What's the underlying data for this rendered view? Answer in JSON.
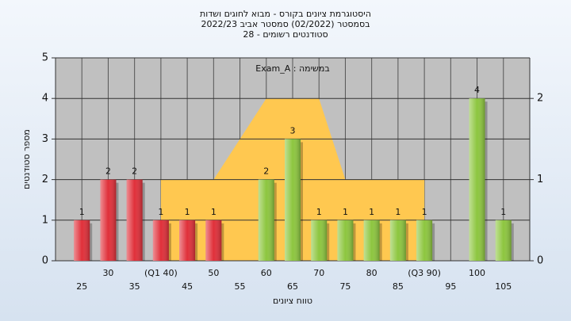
{
  "chart_data": {
    "type": "bar",
    "title": "היסטוגרמת ציונים בקורס - מבוא לחוגים ושדות",
    "subtitle": "בסמסטר  (02/2022)  סמסטר אביב 2022/23",
    "subtitle2": "סטודנטים רשומים - 28",
    "legend_text": "Exam_A : במשימה",
    "xlabel": "טווח ציונים",
    "ylabel": "מספר סטודנטים",
    "categories": [
      "25",
      "30",
      "35",
      "(Q1 40)",
      "45",
      "50",
      "55",
      "60",
      "65",
      "70",
      "75",
      "80",
      "85",
      "(Q3 90)",
      "95",
      "100",
      "105"
    ],
    "x": [
      25,
      30,
      35,
      40,
      45,
      50,
      55,
      60,
      65,
      70,
      75,
      80,
      85,
      90,
      95,
      100,
      105
    ],
    "values": [
      1,
      2,
      2,
      1,
      1,
      1,
      null,
      2,
      3,
      1,
      1,
      1,
      1,
      1,
      null,
      4,
      1
    ],
    "colors": [
      "#e0303a",
      "#e0303a",
      "#e0303a",
      "#e0303a",
      "#e0303a",
      "#e0303a",
      "#e0303a",
      "#8dc63f",
      "#8dc63f",
      "#8dc63f",
      "#8dc63f",
      "#8dc63f",
      "#8dc63f",
      "#8dc63f",
      "#8dc63f",
      "#8dc63f",
      "#8dc63f"
    ],
    "area": {
      "color": "#ffc850",
      "axis": "y2",
      "x": [
        40,
        50,
        60,
        70,
        75,
        90
      ],
      "values": [
        1,
        1,
        2,
        2,
        1,
        1
      ]
    },
    "xlim": [
      20,
      110
    ],
    "ylim": [
      0,
      5
    ],
    "yticks": [
      0,
      1,
      2,
      3,
      4,
      5
    ],
    "y2lim": [
      0,
      2.5
    ],
    "y2ticks": [
      0,
      1,
      2
    ],
    "grid": true
  }
}
